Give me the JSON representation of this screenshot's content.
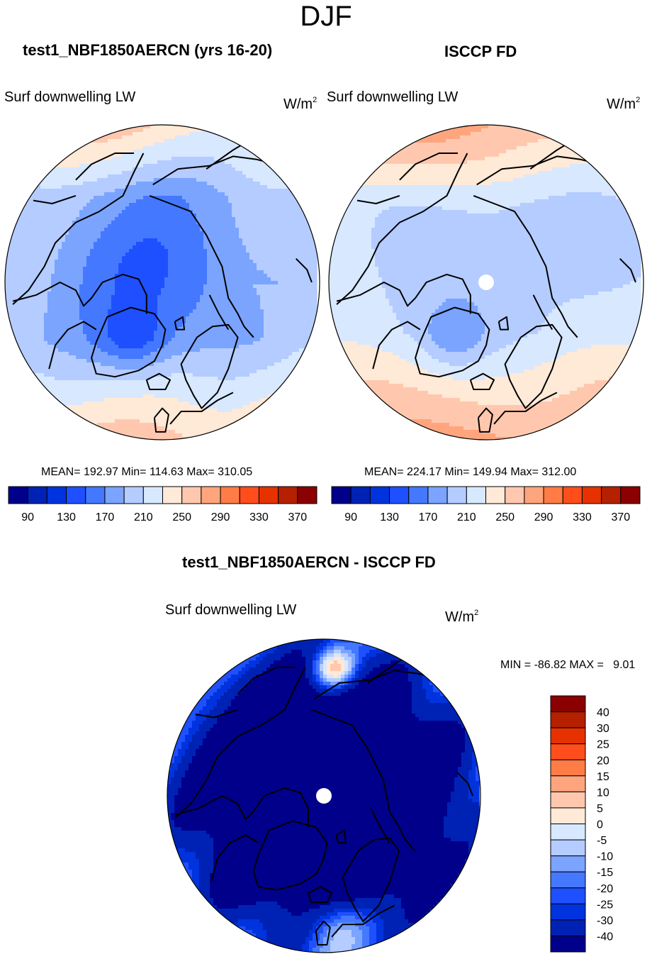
{
  "figure": {
    "title": "DJF"
  },
  "panels": [
    {
      "id": "model",
      "title": "test1_NBF1850AERCN (yrs 16-20)",
      "left_string": "Surf downwelling LW",
      "units_base": "W/m",
      "units_exp": "2",
      "stats": "MEAN= 192.97  Min= 114.63  Max= 310.05",
      "has_pole_hole": false
    },
    {
      "id": "obs",
      "title": "ISCCP FD",
      "left_string": "Surf downwelling LW",
      "units_base": "W/m",
      "units_exp": "2",
      "stats": "MEAN= 224.17  Min= 149.94  Max= 312.00",
      "has_pole_hole": true
    },
    {
      "id": "diff",
      "title": "test1_NBF1850AERCN - ISCCP FD",
      "left_string": "Surf downwelling LW",
      "units_base": "W/m",
      "units_exp": "2",
      "stats": "MIN = -86.82 MAX =   9.01",
      "has_pole_hole": true
    }
  ],
  "chart_data": [
    {
      "type": "heatmap",
      "title": "test1_NBF1850AERCN (yrs 16-20)",
      "projection": "north-polar-stereographic",
      "variable": "Surf downwelling LW",
      "units": "W/m2",
      "season": "DJF",
      "mean": 192.97,
      "min": 114.63,
      "max": 310.05,
      "colorbar": {
        "orientation": "horizontal",
        "levels": [
          90,
          110,
          130,
          150,
          170,
          190,
          210,
          230,
          250,
          270,
          290,
          310,
          330,
          350,
          370
        ],
        "tick_labels": [
          "90",
          "130",
          "170",
          "210",
          "250",
          "290",
          "330",
          "370"
        ],
        "colors": [
          "#00008b",
          "#0022b4",
          "#0033dd",
          "#1e50ff",
          "#4478ff",
          "#7ba4ff",
          "#b4ccff",
          "#d7e8ff",
          "#ffe9d7",
          "#ffc8ae",
          "#ffa57e",
          "#ff7c46",
          "#ff4e1c",
          "#e63200",
          "#b42000",
          "#8b0000"
        ]
      }
    },
    {
      "type": "heatmap",
      "title": "ISCCP FD",
      "projection": "north-polar-stereographic",
      "variable": "Surf downwelling LW",
      "units": "W/m2",
      "season": "DJF",
      "mean": 224.17,
      "min": 149.94,
      "max": 312.0,
      "colorbar": {
        "orientation": "horizontal",
        "levels": [
          90,
          110,
          130,
          150,
          170,
          190,
          210,
          230,
          250,
          270,
          290,
          310,
          330,
          350,
          370
        ],
        "tick_labels": [
          "90",
          "130",
          "170",
          "210",
          "250",
          "290",
          "330",
          "370"
        ],
        "colors": [
          "#00008b",
          "#0022b4",
          "#0033dd",
          "#1e50ff",
          "#4478ff",
          "#7ba4ff",
          "#b4ccff",
          "#d7e8ff",
          "#ffe9d7",
          "#ffc8ae",
          "#ffa57e",
          "#ff7c46",
          "#ff4e1c",
          "#e63200",
          "#b42000",
          "#8b0000"
        ]
      }
    },
    {
      "type": "heatmap",
      "title": "test1_NBF1850AERCN - ISCCP FD",
      "projection": "north-polar-stereographic",
      "variable": "Surf downwelling LW",
      "units": "W/m2",
      "season": "DJF",
      "min": -86.82,
      "max": 9.01,
      "colorbar": {
        "orientation": "vertical",
        "levels": [
          -40,
          -30,
          -25,
          -20,
          -15,
          -10,
          -5,
          0,
          5,
          10,
          15,
          20,
          25,
          30,
          40
        ],
        "tick_labels": [
          "-40",
          "-30",
          "-25",
          "-20",
          "-15",
          "-10",
          "-5",
          "0",
          "5",
          "10",
          "15",
          "20",
          "25",
          "30",
          "40"
        ],
        "colors": [
          "#00008b",
          "#0022b4",
          "#0033dd",
          "#1e50ff",
          "#4478ff",
          "#7ba4ff",
          "#b4ccff",
          "#d7e8ff",
          "#ffe9d7",
          "#ffc8ae",
          "#ffa57e",
          "#ff7c46",
          "#ff4e1c",
          "#e63200",
          "#b42000",
          "#8b0000"
        ]
      }
    }
  ]
}
